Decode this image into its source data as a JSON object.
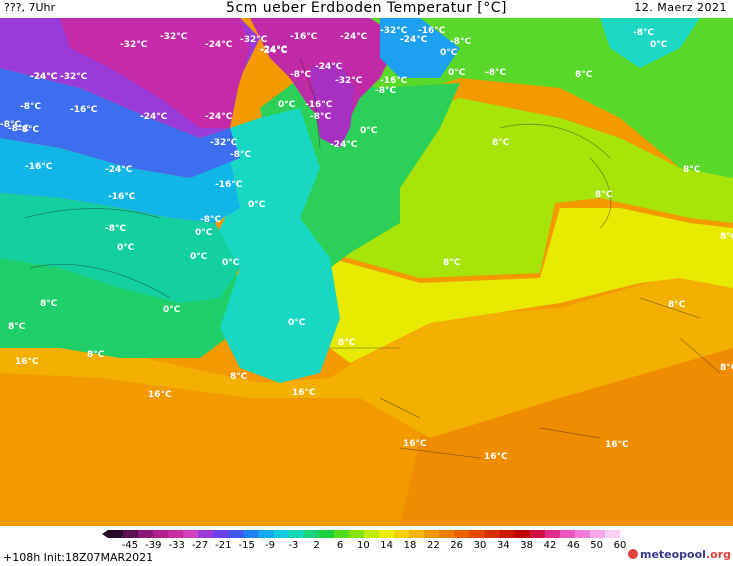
{
  "header": {
    "left": "???, 7Uhr",
    "title": "5cm ueber Erdboden Temperatur [°C]",
    "date": "12. Maerz 2021"
  },
  "footer": {
    "run": "+108h  Init:18Z07MAR2021",
    "brand_main": "meteopool",
    "brand_suffix": ".org"
  },
  "legend": {
    "ticks": [
      "-45",
      "-39",
      "-33",
      "-27",
      "-21",
      "-15",
      "-9",
      "-3",
      "2",
      "6",
      "10",
      "14",
      "18",
      "22",
      "26",
      "30",
      "34",
      "38",
      "42",
      "46",
      "50",
      "60"
    ],
    "colors": [
      "#2a0a2a",
      "#5a1050",
      "#8a1a7a",
      "#b0208f",
      "#cc2aa0",
      "#d23fbf",
      "#9a38d8",
      "#6a3ff0",
      "#3f54f0",
      "#1f80f2",
      "#10a8f0",
      "#12c8dc",
      "#14d8b8",
      "#18d27a",
      "#1cd040",
      "#50dc18",
      "#86e40a",
      "#c0ec08",
      "#ecf000",
      "#f4d000",
      "#f4b400",
      "#f29800",
      "#ee7c00",
      "#ea6000",
      "#e44800",
      "#d83000",
      "#cc1800",
      "#c00000",
      "#d01040",
      "#e02c8a",
      "#ec52c0",
      "#f27cda",
      "#f6a8ea",
      "#fad0f4"
    ]
  },
  "map_labels": [
    {
      "t": "-32°C"
    },
    {
      "t": "-32°C"
    },
    {
      "t": "-24°C"
    },
    {
      "t": "-32°C"
    },
    {
      "t": "-24°C"
    },
    {
      "t": "-16°C"
    },
    {
      "t": "-24°C"
    },
    {
      "t": "-32°C"
    },
    {
      "t": "-16°C"
    },
    {
      "t": "-24°C"
    },
    {
      "t": "-24°C"
    },
    {
      "t": "-8°C"
    },
    {
      "t": "0°C"
    },
    {
      "t": "-8°C"
    },
    {
      "t": "0°C"
    },
    {
      "t": "-24°C"
    },
    {
      "t": "-32°C"
    },
    {
      "t": "-24°C"
    },
    {
      "t": "-8°C"
    },
    {
      "t": "-16°C"
    },
    {
      "t": "-32°C"
    },
    {
      "t": "0°C"
    },
    {
      "t": "-8°C"
    },
    {
      "t": "-16°C"
    },
    {
      "t": "-8°C"
    },
    {
      "t": "-24°C"
    },
    {
      "t": "-24°C"
    },
    {
      "t": "-8°C"
    },
    {
      "t": "0°C"
    },
    {
      "t": "-16°C"
    },
    {
      "t": "-8°C"
    },
    {
      "t": "-32°C"
    },
    {
      "t": "-8°C"
    },
    {
      "t": "-24°C"
    },
    {
      "t": "0°C"
    },
    {
      "t": "-16°C"
    },
    {
      "t": "-24°C"
    },
    {
      "t": "-24°C"
    },
    {
      "t": "-16°C"
    },
    {
      "t": "-16°C"
    },
    {
      "t": "0°C"
    },
    {
      "t": "-8°C"
    },
    {
      "t": "-8°C"
    },
    {
      "t": "-8°C"
    },
    {
      "t": "0°C"
    },
    {
      "t": "0°C"
    },
    {
      "t": "0°C"
    },
    {
      "t": "0°C"
    },
    {
      "t": "8°C"
    },
    {
      "t": "8°C"
    },
    {
      "t": "8°C"
    },
    {
      "t": "0°C"
    },
    {
      "t": "0°C"
    },
    {
      "t": "8°C"
    },
    {
      "t": "8°C"
    },
    {
      "t": "8°C"
    },
    {
      "t": "16°C"
    },
    {
      "t": "8°C"
    },
    {
      "t": "16°C"
    },
    {
      "t": "16°C"
    },
    {
      "t": "16°C"
    },
    {
      "t": "16°C"
    },
    {
      "t": "16°C"
    },
    {
      "t": "8°C"
    },
    {
      "t": "8°C"
    },
    {
      "t": "8°C"
    },
    {
      "t": "8°C"
    },
    {
      "t": "8°C"
    },
    {
      "t": "8°C"
    },
    {
      "t": "-8°C"
    },
    {
      "t": "0°C"
    },
    {
      "t": "-8°C"
    },
    {
      "t": "0°C"
    }
  ]
}
